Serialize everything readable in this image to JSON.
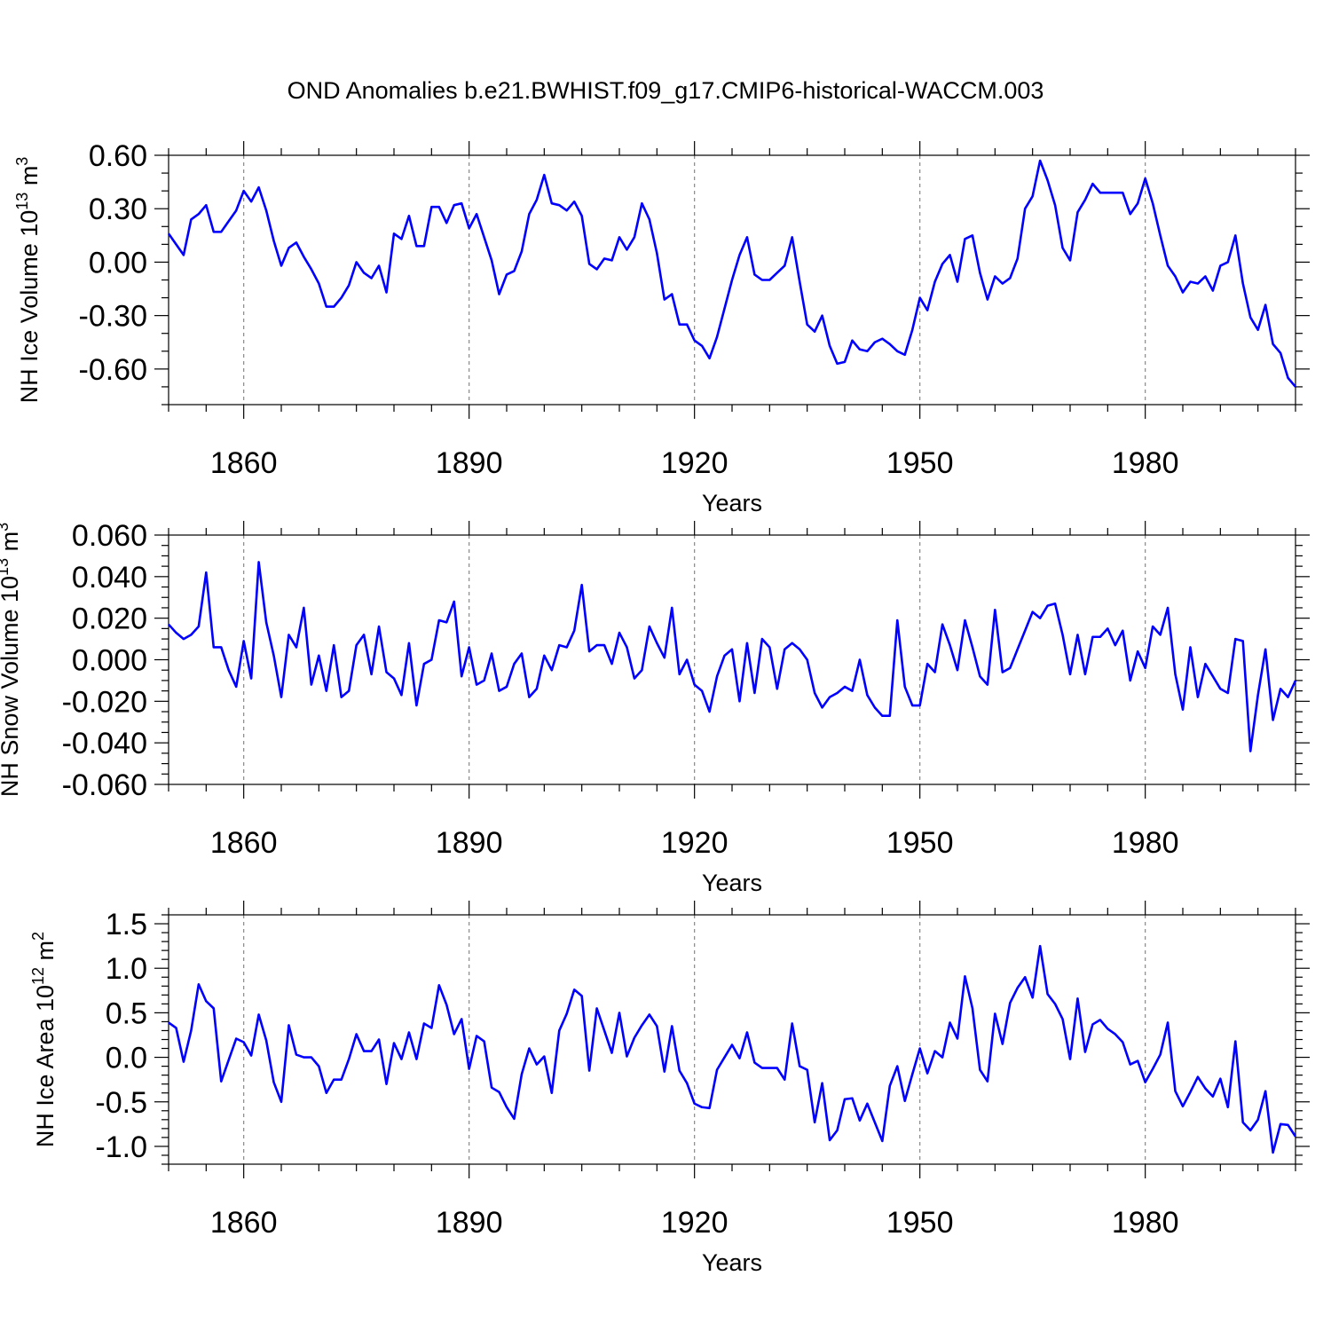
{
  "title": "OND Anomalies b.e21.BWHIST.f09_g17.CMIP6-historical-WACCM.003",
  "chart_data": [
    {
      "type": "line",
      "name": "nh-ice-volume",
      "ylabel": {
        "main": "NH Ice Volume 10",
        "exp": "13",
        "unit": " m",
        "unit_exp": "3"
      },
      "xlabel": "Years",
      "xlim": [
        1850,
        2000
      ],
      "ylim": [
        -0.8,
        0.6
      ],
      "xticks": [
        1860,
        1890,
        1920,
        1950,
        1980
      ],
      "xtick_labels": [
        "1860",
        "1890",
        "1920",
        "1950",
        "1980"
      ],
      "yticks": [
        0.6,
        0.3,
        0.0,
        -0.3,
        -0.6
      ],
      "ytick_labels": [
        "0.60",
        "0.30",
        "0.00",
        "-0.30",
        "-0.60"
      ],
      "y_minor_step": 0.1,
      "grid": "vertical dashed at major x ticks",
      "series": [
        {
          "name": "NH Ice Volume",
          "color": "#0000ff",
          "start_year": 1850,
          "values": [
            0.16,
            0.1,
            0.04,
            0.24,
            0.27,
            0.32,
            0.17,
            0.17,
            0.23,
            0.29,
            0.4,
            0.34,
            0.42,
            0.29,
            0.12,
            -0.02,
            0.08,
            0.11,
            0.03,
            -0.04,
            -0.12,
            -0.25,
            -0.25,
            -0.2,
            -0.13,
            0.0,
            -0.06,
            -0.09,
            -0.02,
            -0.17,
            0.16,
            0.13,
            0.26,
            0.09,
            0.09,
            0.31,
            0.31,
            0.22,
            0.32,
            0.33,
            0.19,
            0.27,
            0.14,
            0.01,
            -0.18,
            -0.07,
            -0.05,
            0.06,
            0.27,
            0.35,
            0.49,
            0.33,
            0.32,
            0.29,
            0.34,
            0.26,
            -0.01,
            -0.04,
            0.02,
            0.01,
            0.14,
            0.07,
            0.14,
            0.33,
            0.24,
            0.05,
            -0.21,
            -0.18,
            -0.35,
            -0.35,
            -0.44,
            -0.47,
            -0.54,
            -0.42,
            -0.26,
            -0.1,
            0.04,
            0.14,
            -0.07,
            -0.1,
            -0.1,
            -0.06,
            -0.02,
            0.14,
            -0.11,
            -0.35,
            -0.39,
            -0.3,
            -0.47,
            -0.57,
            -0.56,
            -0.44,
            -0.49,
            -0.5,
            -0.45,
            -0.43,
            -0.46,
            -0.5,
            -0.52,
            -0.38,
            -0.2,
            -0.27,
            -0.11,
            -0.01,
            0.04,
            -0.11,
            0.13,
            0.15,
            -0.06,
            -0.21,
            -0.08,
            -0.12,
            -0.09,
            0.02,
            0.3,
            0.37,
            0.57,
            0.46,
            0.32,
            0.08,
            0.01,
            0.28,
            0.35,
            0.44,
            0.39,
            0.39,
            0.39,
            0.39,
            0.27,
            0.33,
            0.47,
            0.33,
            0.15,
            -0.02,
            -0.08,
            -0.17,
            -0.11,
            -0.12,
            -0.08,
            -0.16,
            -0.02,
            0.0,
            0.15,
            -0.12,
            -0.31,
            -0.38,
            -0.24,
            -0.46,
            -0.51,
            -0.65,
            -0.7
          ]
        }
      ]
    },
    {
      "type": "line",
      "name": "nh-snow-volume",
      "ylabel": {
        "main": "NH Snow Volume 10",
        "exp": "13",
        "unit": " m",
        "unit_exp": "3"
      },
      "xlabel": "Years",
      "xlim": [
        1850,
        2000
      ],
      "ylim": [
        -0.06,
        0.06
      ],
      "xticks": [
        1860,
        1890,
        1920,
        1950,
        1980
      ],
      "xtick_labels": [
        "1860",
        "1890",
        "1920",
        "1950",
        "1980"
      ],
      "yticks": [
        0.06,
        0.04,
        0.02,
        0.0,
        -0.02,
        -0.04,
        -0.06
      ],
      "ytick_labels": [
        "0.060",
        "0.040",
        "0.020",
        "0.000",
        "-0.020",
        "-0.040",
        "-0.060"
      ],
      "y_minor_step": 0.005,
      "grid": "vertical dashed at major x ticks",
      "series": [
        {
          "name": "NH Snow Volume",
          "color": "#0000ff",
          "start_year": 1850,
          "values": [
            0.017,
            0.013,
            0.01,
            0.012,
            0.016,
            0.042,
            0.006,
            0.006,
            -0.005,
            -0.013,
            0.009,
            -0.009,
            0.047,
            0.018,
            0.002,
            -0.018,
            0.012,
            0.006,
            0.025,
            -0.012,
            0.002,
            -0.015,
            0.007,
            -0.018,
            -0.015,
            0.007,
            0.012,
            -0.007,
            0.016,
            -0.006,
            -0.009,
            -0.017,
            0.008,
            -0.022,
            -0.002,
            0.0,
            0.019,
            0.018,
            0.028,
            -0.008,
            0.006,
            -0.012,
            -0.01,
            0.003,
            -0.015,
            -0.013,
            -0.002,
            0.003,
            -0.018,
            -0.014,
            0.002,
            -0.005,
            0.007,
            0.006,
            0.014,
            0.036,
            0.004,
            0.007,
            0.007,
            -0.002,
            0.013,
            0.006,
            -0.009,
            -0.005,
            0.016,
            0.008,
            0.001,
            0.025,
            -0.007,
            0.0,
            -0.012,
            -0.015,
            -0.025,
            -0.008,
            0.002,
            0.005,
            -0.02,
            0.008,
            -0.016,
            0.01,
            0.006,
            -0.014,
            0.005,
            0.008,
            0.005,
            0.0,
            -0.016,
            -0.023,
            -0.018,
            -0.016,
            -0.013,
            -0.015,
            0.0,
            -0.017,
            -0.023,
            -0.027,
            -0.027,
            0.019,
            -0.013,
            -0.022,
            -0.022,
            -0.002,
            -0.006,
            0.017,
            0.007,
            -0.005,
            0.019,
            0.006,
            -0.008,
            -0.012,
            0.024,
            -0.006,
            -0.004,
            0.005,
            0.014,
            0.023,
            0.02,
            0.026,
            0.027,
            0.012,
            -0.007,
            0.012,
            -0.007,
            0.011,
            0.011,
            0.015,
            0.007,
            0.014,
            -0.01,
            0.004,
            -0.004,
            0.016,
            0.012,
            0.025,
            -0.007,
            -0.024,
            0.006,
            -0.018,
            -0.002,
            -0.008,
            -0.014,
            -0.016,
            0.01,
            0.009,
            -0.044,
            -0.017,
            0.005,
            -0.029,
            -0.014,
            -0.018,
            -0.01
          ]
        }
      ]
    },
    {
      "type": "line",
      "name": "nh-ice-area",
      "ylabel": {
        "main": "NH Ice Area 10",
        "exp": "12",
        "unit": " m",
        "unit_exp": "2"
      },
      "xlabel": "Years",
      "xlim": [
        1850,
        2000
      ],
      "ylim": [
        -1.2,
        1.6
      ],
      "xticks": [
        1860,
        1890,
        1920,
        1950,
        1980
      ],
      "xtick_labels": [
        "1860",
        "1890",
        "1920",
        "1950",
        "1980"
      ],
      "yticks": [
        1.5,
        1.0,
        0.5,
        0.0,
        -0.5,
        -1.0
      ],
      "ytick_labels": [
        "1.5",
        "1.0",
        "0.5",
        "0.0",
        "-0.5",
        "-1.0"
      ],
      "y_minor_step": 0.1,
      "grid": "vertical dashed at major x ticks",
      "series": [
        {
          "name": "NH Ice Area",
          "color": "#0000ff",
          "start_year": 1850,
          "values": [
            0.39,
            0.33,
            -0.05,
            0.3,
            0.82,
            0.63,
            0.55,
            -0.27,
            -0.03,
            0.21,
            0.17,
            0.02,
            0.48,
            0.19,
            -0.28,
            -0.5,
            0.36,
            0.03,
            0.0,
            0.0,
            -0.1,
            -0.4,
            -0.25,
            -0.25,
            -0.02,
            0.26,
            0.07,
            0.07,
            0.2,
            -0.3,
            0.16,
            -0.02,
            0.28,
            -0.02,
            0.38,
            0.33,
            0.81,
            0.59,
            0.26,
            0.43,
            -0.13,
            0.24,
            0.18,
            -0.34,
            -0.39,
            -0.56,
            -0.69,
            -0.19,
            0.1,
            -0.08,
            0.01,
            -0.4,
            0.3,
            0.49,
            0.76,
            0.69,
            -0.15,
            0.55,
            0.3,
            0.05,
            0.5,
            0.01,
            0.22,
            0.36,
            0.48,
            0.35,
            -0.16,
            0.35,
            -0.15,
            -0.29,
            -0.52,
            -0.56,
            -0.57,
            -0.14,
            0.0,
            0.14,
            -0.01,
            0.28,
            -0.06,
            -0.12,
            -0.12,
            -0.12,
            -0.25,
            0.38,
            -0.1,
            -0.14,
            -0.73,
            -0.29,
            -0.93,
            -0.82,
            -0.47,
            -0.46,
            -0.71,
            -0.52,
            -0.73,
            -0.94,
            -0.32,
            -0.1,
            -0.49,
            -0.19,
            0.1,
            -0.18,
            0.07,
            0.0,
            0.39,
            0.21,
            0.91,
            0.55,
            -0.14,
            -0.27,
            0.49,
            0.15,
            0.61,
            0.78,
            0.9,
            0.67,
            1.25,
            0.71,
            0.6,
            0.43,
            -0.02,
            0.66,
            0.06,
            0.37,
            0.42,
            0.32,
            0.26,
            0.17,
            -0.08,
            -0.04,
            -0.28,
            -0.13,
            0.03,
            0.39,
            -0.38,
            -0.55,
            -0.39,
            -0.22,
            -0.35,
            -0.44,
            -0.24,
            -0.56,
            0.18,
            -0.73,
            -0.82,
            -0.7,
            -0.38,
            -1.07,
            -0.75,
            -0.76,
            -0.89
          ]
        }
      ]
    }
  ]
}
